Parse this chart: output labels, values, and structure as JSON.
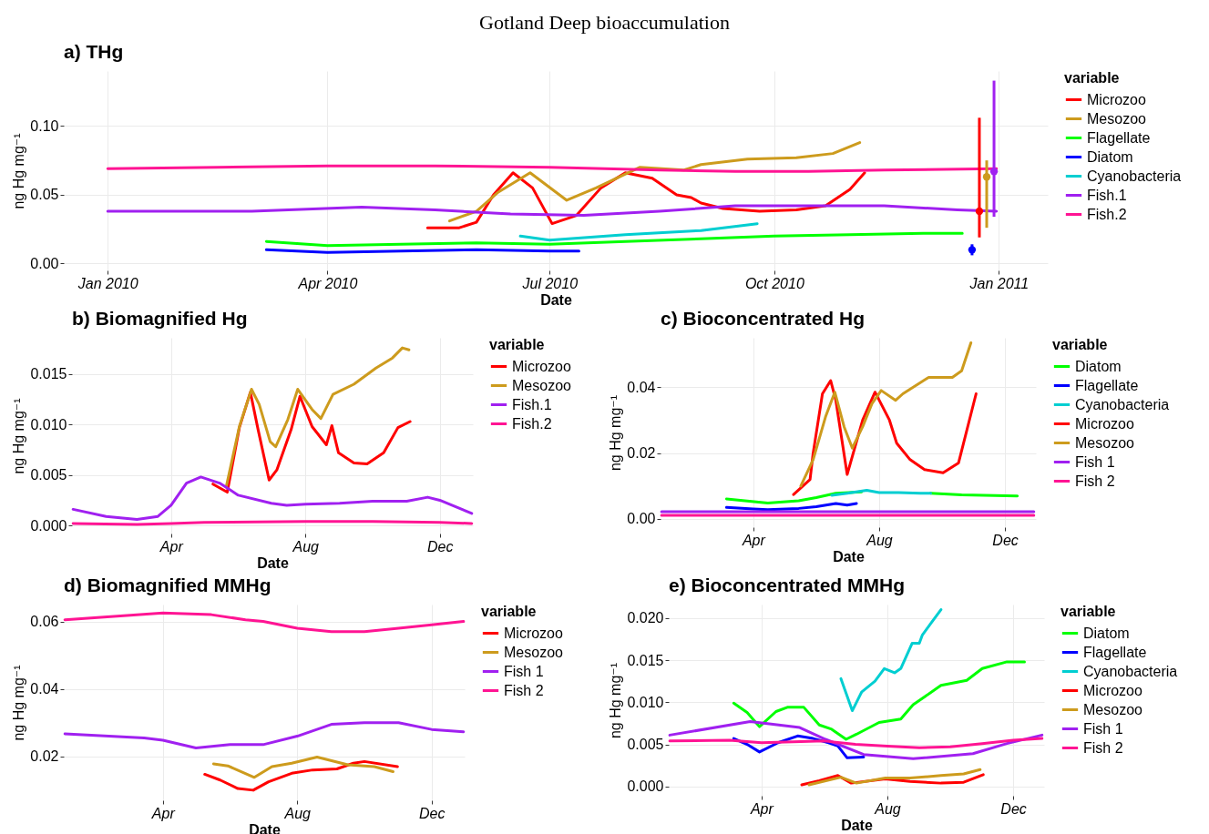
{
  "chart_data": [
    {
      "type": "line",
      "title": "a) THg",
      "xlabel": "Date",
      "ylabel": "ng Hg  mg⁻¹",
      "legend_title": "variable",
      "legend": "right",
      "grid": true,
      "annotations": [
        "Gotland Deep bioaccumulation"
      ],
      "xlim": [
        "2009-12-14",
        "2011-01-21"
      ],
      "xticks": [
        {
          "value": "2010-01-01",
          "label": "Jan 2010"
        },
        {
          "value": "2010-04-01",
          "label": "Apr 2010"
        },
        {
          "value": "2010-07-01",
          "label": "Jul 2010"
        },
        {
          "value": "2010-10-01",
          "label": "Oct 2010"
        },
        {
          "value": "2011-01-01",
          "label": "Jan 2011"
        }
      ],
      "ylim": [
        -0.005,
        0.14
      ],
      "yticks": [
        {
          "value": 0,
          "label": "0.00"
        },
        {
          "value": 0.05,
          "label": "0.05"
        },
        {
          "value": 0.1,
          "label": "0.10"
        }
      ],
      "series": [
        {
          "name": "Microzoo",
          "color": "#ff0000",
          "x": [
            "2010-05-12",
            "2010-05-25",
            "2010-06-01",
            "2010-06-08",
            "2010-06-16",
            "2010-06-24",
            "2010-07-02",
            "2010-07-12",
            "2010-07-22",
            "2010-08-01",
            "2010-08-12",
            "2010-08-22",
            "2010-08-28",
            "2010-09-01",
            "2010-09-10",
            "2010-09-25",
            "2010-10-10",
            "2010-10-22",
            "2010-11-01",
            "2010-11-07"
          ],
          "values": [
            0.026,
            0.026,
            0.03,
            0.05,
            0.066,
            0.055,
            0.029,
            0.035,
            0.055,
            0.066,
            0.062,
            0.05,
            0.048,
            0.044,
            0.04,
            0.038,
            0.039,
            0.042,
            0.054,
            0.066
          ]
        },
        {
          "name": "Mesozoo",
          "color": "#cd9b1d",
          "x": [
            "2010-05-21",
            "2010-06-01",
            "2010-06-10",
            "2010-06-23",
            "2010-07-08",
            "2010-07-20",
            "2010-08-07",
            "2010-08-25",
            "2010-09-01",
            "2010-09-20",
            "2010-10-10",
            "2010-10-25",
            "2010-11-05"
          ],
          "values": [
            0.031,
            0.038,
            0.052,
            0.066,
            0.046,
            0.055,
            0.07,
            0.068,
            0.072,
            0.076,
            0.077,
            0.08,
            0.088
          ]
        },
        {
          "name": "Flagellate",
          "color": "#00ff00",
          "x": [
            "2010-03-07",
            "2010-04-01",
            "2010-05-01",
            "2010-06-01",
            "2010-07-01",
            "2010-08-01",
            "2010-09-01",
            "2010-10-01",
            "2010-11-01",
            "2010-12-01",
            "2010-12-17"
          ],
          "values": [
            0.016,
            0.013,
            0.014,
            0.015,
            0.014,
            0.016,
            0.018,
            0.02,
            0.021,
            0.022,
            0.022
          ]
        },
        {
          "name": "Diatom",
          "color": "#0000ff",
          "x": [
            "2010-03-07",
            "2010-04-01",
            "2010-05-01",
            "2010-06-01",
            "2010-07-01",
            "2010-07-13"
          ],
          "values": [
            0.01,
            0.008,
            0.009,
            0.01,
            0.009,
            0.009
          ]
        },
        {
          "name": "Cyanobacteria",
          "color": "#00ced1",
          "x": [
            "2010-06-19",
            "2010-07-01",
            "2010-08-01",
            "2010-09-01",
            "2010-09-24"
          ],
          "values": [
            0.02,
            0.017,
            0.021,
            0.024,
            0.029
          ]
        },
        {
          "name": "Fish.1",
          "color": "#a020f0",
          "x": [
            "2010-01-01",
            "2010-03-01",
            "2010-04-15",
            "2010-05-15",
            "2010-06-15",
            "2010-07-15",
            "2010-08-15",
            "2010-09-15",
            "2010-10-15",
            "2010-11-15",
            "2010-12-15",
            "2010-12-31"
          ],
          "values": [
            0.038,
            0.038,
            0.041,
            0.039,
            0.036,
            0.035,
            0.038,
            0.042,
            0.042,
            0.042,
            0.039,
            0.038
          ]
        },
        {
          "name": "Fish.2",
          "color": "#ff1493",
          "x": [
            "2010-01-01",
            "2010-02-15",
            "2010-04-01",
            "2010-05-15",
            "2010-07-01",
            "2010-08-15",
            "2010-09-15",
            "2010-10-15",
            "2010-11-15",
            "2010-12-31"
          ],
          "values": [
            0.069,
            0.07,
            0.071,
            0.071,
            0.07,
            0.068,
            0.067,
            0.067,
            0.068,
            0.069
          ]
        },
        {
          "type": "scatter",
          "marker": "circle",
          "color": "#0000ff",
          "x": [
            "2010-12-21"
          ],
          "values": [
            0.01
          ],
          "errors": [
            [
              0.006,
              0.014
            ]
          ]
        },
        {
          "type": "scatter",
          "marker": "circle",
          "color": "#ff0000",
          "x": [
            "2010-12-24"
          ],
          "values": [
            0.038
          ],
          "errors": [
            [
              0.019,
              0.106
            ]
          ]
        },
        {
          "type": "scatter",
          "marker": "circle",
          "color": "#cd9b1d",
          "x": [
            "2010-12-27"
          ],
          "values": [
            0.063
          ],
          "errors": [
            [
              0.026,
              0.075
            ]
          ]
        },
        {
          "type": "scatter",
          "marker": "circle",
          "color": "#a020f0",
          "x": [
            "2010-12-30"
          ],
          "values": [
            0.067
          ],
          "errors": [
            [
              0.034,
              0.133
            ]
          ]
        }
      ]
    },
    {
      "type": "line",
      "title": "b) Biomagnified Hg",
      "xlabel": "Date",
      "ylabel": "ng Hg  mg⁻¹",
      "legend_title": "variable",
      "legend": "right",
      "grid": true,
      "xlim": [
        "--01-01",
        "--12-31"
      ],
      "xticks": [
        {
          "value": "--04-01",
          "label": "Apr"
        },
        {
          "value": "--08-01",
          "label": "Aug"
        },
        {
          "value": "--12-01",
          "label": "Dec"
        }
      ],
      "ylim": [
        -0.0008,
        0.0186
      ],
      "yticks": [
        {
          "value": 0,
          "label": "0.000"
        },
        {
          "value": 0.005,
          "label": "0.005"
        },
        {
          "value": 0.01,
          "label": "0.010"
        },
        {
          "value": 0.015,
          "label": "0.015"
        }
      ],
      "series": [
        {
          "name": "Microzoo",
          "color": "#ff0000",
          "x": [
            "--05-09",
            "--05-22",
            "--06-02",
            "--06-12",
            "--06-19",
            "--06-29",
            "--07-06",
            "--07-19",
            "--07-27",
            "--08-07",
            "--08-20",
            "--08-25",
            "--08-31",
            "--09-14",
            "--09-26",
            "--10-11",
            "--10-24",
            "--11-04"
          ],
          "values": [
            0.0041,
            0.0033,
            0.0097,
            0.0132,
            0.0095,
            0.0045,
            0.0055,
            0.0095,
            0.0128,
            0.0098,
            0.008,
            0.0099,
            0.0072,
            0.0062,
            0.0061,
            0.0072,
            0.0097,
            0.0103
          ]
        },
        {
          "name": "Mesozoo",
          "color": "#cd9b1d",
          "x": [
            "--05-21",
            "--06-02",
            "--06-13",
            "--06-20",
            "--06-30",
            "--07-05",
            "--07-16",
            "--07-25",
            "--08-07",
            "--08-15",
            "--08-26",
            "--09-14",
            "--10-04",
            "--10-19",
            "--10-28",
            "--11-03"
          ],
          "values": [
            0.0038,
            0.0098,
            0.0135,
            0.012,
            0.0083,
            0.0078,
            0.0105,
            0.0135,
            0.0115,
            0.0106,
            0.013,
            0.014,
            0.0156,
            0.0166,
            0.0176,
            0.0174
          ]
        },
        {
          "name": "Fish.1",
          "color": "#a020f0",
          "x": [
            "--01-02",
            "--02-01",
            "--03-01",
            "--03-20",
            "--04-01",
            "--04-15",
            "--04-28",
            "--05-15",
            "--06-01",
            "--07-01",
            "--07-15",
            "--08-01",
            "--09-01",
            "--10-01",
            "--11-01",
            "--11-20",
            "--12-01",
            "--12-30"
          ],
          "values": [
            0.0016,
            0.0009,
            0.0006,
            0.0009,
            0.002,
            0.0042,
            0.0048,
            0.0042,
            0.003,
            0.0022,
            0.002,
            0.0021,
            0.0022,
            0.0024,
            0.0024,
            0.0028,
            0.0025,
            0.0012
          ]
        },
        {
          "name": "Fish.2",
          "color": "#ff1493",
          "x": [
            "--01-02",
            "--03-01",
            "--04-01",
            "--05-01",
            "--08-01",
            "--10-01",
            "--12-01",
            "--12-30"
          ],
          "values": [
            0.0002,
            0.0001,
            0.0002,
            0.0003,
            0.0004,
            0.0004,
            0.0003,
            0.0002
          ]
        }
      ]
    },
    {
      "type": "line",
      "title": "c) Bioconcentrated Hg",
      "xlabel": "Date",
      "ylabel": "ng Hg mg⁻¹",
      "legend_title": "variable",
      "legend": "right",
      "grid": true,
      "xlim": [
        "--01-01",
        "--12-31"
      ],
      "xticks": [
        {
          "value": "--04-01",
          "label": "Apr"
        },
        {
          "value": "--08-01",
          "label": "Aug"
        },
        {
          "value": "--12-01",
          "label": "Dec"
        }
      ],
      "ylim": [
        -0.0025,
        0.055
      ],
      "yticks": [
        {
          "value": 0,
          "label": "0.00"
        },
        {
          "value": 0.02,
          "label": "0.02"
        },
        {
          "value": 0.04,
          "label": "0.04"
        }
      ],
      "series": [
        {
          "name": "Diatom",
          "color": "#00ff00",
          "x": [
            "--03-06",
            "--04-15",
            "--05-15",
            "--06-01",
            "--06-20",
            "--07-15",
            "--08-15",
            "--09-20",
            "--10-20",
            "--12-13"
          ],
          "values": [
            0.0061,
            0.0048,
            0.0055,
            0.0065,
            0.0078,
            0.0082,
            null,
            0.0078,
            0.0073,
            0.007
          ]
        },
        {
          "name": "Flagellate",
          "color": "#0000ff",
          "x": [
            "--03-06",
            "--04-01",
            "--04-15",
            "--05-15",
            "--06-01",
            "--06-20",
            "--07-01",
            "--07-10"
          ],
          "values": [
            0.0035,
            0.003,
            0.0028,
            0.0032,
            0.0037,
            0.0047,
            0.0042,
            0.0047
          ]
        },
        {
          "name": "Cyanobacteria",
          "color": "#00ced1",
          "x": [
            "--06-16",
            "--07-01",
            "--07-20",
            "--08-01",
            "--08-20",
            "--09-10",
            "--09-20"
          ],
          "values": [
            0.0072,
            0.0078,
            0.0087,
            0.008,
            0.008,
            0.0078,
            0.0078
          ]
        },
        {
          "name": "Microzoo",
          "color": "#ff0000",
          "x": [
            "--05-10",
            "--05-26",
            "--05-29",
            "--06-07",
            "--06-15",
            "--06-20",
            "--07-01",
            "--07-16",
            "--07-28",
            "--08-11",
            "--08-18",
            "--08-31",
            "--09-14",
            "--10-02",
            "--10-17",
            "--11-03"
          ],
          "values": [
            0.0074,
            0.012,
            0.02,
            0.038,
            0.042,
            0.036,
            0.0135,
            0.03,
            0.0385,
            0.03,
            0.023,
            0.018,
            0.015,
            0.014,
            0.017,
            0.038
          ]
        },
        {
          "name": "Mesozoo",
          "color": "#cd9b1d",
          "x": [
            "--05-17",
            "--05-29",
            "--06-10",
            "--06-19",
            "--06-28",
            "--07-06",
            "--07-16",
            "--07-25",
            "--08-03",
            "--08-17",
            "--08-24",
            "--09-18",
            "--10-11",
            "--10-20",
            "--10-29"
          ],
          "values": [
            0.01,
            0.018,
            0.031,
            0.0385,
            0.028,
            0.0215,
            0.028,
            0.035,
            0.039,
            0.036,
            0.038,
            0.043,
            0.043,
            0.045,
            0.0535
          ]
        },
        {
          "name": "Fish 1",
          "color": "#a020f0",
          "x": [
            "--01-02",
            "--03-01",
            "--05-01",
            "--07-01",
            "--09-01",
            "--11-01",
            "--12-29"
          ],
          "values": [
            0.0022,
            0.0022,
            0.0022,
            0.0022,
            0.0022,
            0.0022,
            0.0022
          ]
        },
        {
          "name": "Fish 2",
          "color": "#ff1493",
          "x": [
            "--01-02",
            "--03-01",
            "--05-01",
            "--07-01",
            "--09-01",
            "--11-01",
            "--12-29"
          ],
          "values": [
            0.0011,
            0.0011,
            0.0011,
            0.0011,
            0.0011,
            0.0011,
            0.0011
          ]
        }
      ]
    },
    {
      "type": "line",
      "title": "d) Biomagnified MMHg",
      "xlabel": "Date",
      "ylabel": "ng Hg mg⁻¹",
      "legend_title": "variable",
      "legend": "right",
      "grid": true,
      "xlim": [
        "--01-01",
        "--12-31"
      ],
      "xticks": [
        {
          "value": "--04-01",
          "label": "Apr"
        },
        {
          "value": "--08-01",
          "label": "Aug"
        },
        {
          "value": "--12-01",
          "label": "Dec"
        }
      ],
      "ylim": [
        0.007,
        0.065
      ],
      "yticks": [
        {
          "value": 0.02,
          "label": "0.02"
        },
        {
          "value": 0.04,
          "label": "0.04"
        },
        {
          "value": 0.06,
          "label": "0.06"
        }
      ],
      "series": [
        {
          "name": "Microzoo",
          "color": "#ff0000",
          "x": [
            "--05-09",
            "--05-23",
            "--06-08",
            "--06-22",
            "--07-06",
            "--07-27",
            "--08-15",
            "--09-06",
            "--09-21",
            "--10-01",
            "--10-31"
          ],
          "values": [
            0.0147,
            0.013,
            0.0105,
            0.01,
            0.0125,
            0.015,
            0.016,
            0.0163,
            0.018,
            0.0185,
            0.017
          ]
        },
        {
          "name": "Mesozoo",
          "color": "#cd9b1d",
          "x": [
            "--05-17",
            "--05-30",
            "--06-23",
            "--07-09",
            "--07-27",
            "--08-19",
            "--09-16",
            "--10-10",
            "--10-27"
          ],
          "values": [
            0.0178,
            0.0172,
            0.0138,
            0.017,
            0.018,
            0.0198,
            0.0175,
            0.017,
            0.0155
          ]
        },
        {
          "name": "Fish 1",
          "color": "#a020f0",
          "x": [
            "--01-02",
            "--03-15",
            "--04-01",
            "--05-01",
            "--06-01",
            "--07-01",
            "--08-01",
            "--09-01",
            "--10-01",
            "--11-01",
            "--12-01",
            "--12-30"
          ],
          "values": [
            0.0267,
            0.0255,
            0.0248,
            0.0225,
            0.0235,
            0.0235,
            0.026,
            0.0295,
            0.03,
            0.03,
            0.028,
            0.0273
          ]
        },
        {
          "name": "Fish 2",
          "color": "#ff1493",
          "x": [
            "--01-02",
            "--04-01",
            "--05-15",
            "--06-15",
            "--07-01",
            "--08-01",
            "--09-01",
            "--10-01",
            "--11-01",
            "--12-01",
            "--12-30"
          ],
          "values": [
            0.0605,
            0.0625,
            0.062,
            0.0605,
            0.06,
            0.058,
            0.057,
            0.057,
            0.058,
            0.059,
            0.06
          ]
        }
      ]
    },
    {
      "type": "line",
      "title": "e) Bioconcentrated MMHg",
      "xlabel": "Date",
      "ylabel": "ng Hg mg⁻¹",
      "legend_title": "variable",
      "legend": "right",
      "grid": true,
      "xlim": [
        "--01-01",
        "--12-31"
      ],
      "xticks": [
        {
          "value": "--04-01",
          "label": "Apr"
        },
        {
          "value": "--08-01",
          "label": "Aug"
        },
        {
          "value": "--12-01",
          "label": "Dec"
        }
      ],
      "ylim": [
        -0.0011,
        0.0216
      ],
      "yticks": [
        {
          "value": 0,
          "label": "0.000"
        },
        {
          "value": 0.005,
          "label": "0.005"
        },
        {
          "value": 0.01,
          "label": "0.010"
        },
        {
          "value": 0.015,
          "label": "0.015"
        },
        {
          "value": 0.02,
          "label": "0.020"
        }
      ],
      "series": [
        {
          "name": "Diatom",
          "color": "#00ff00",
          "x": [
            "--03-05",
            "--03-18",
            "--03-30",
            "--04-15",
            "--04-26",
            "--05-12",
            "--05-27",
            "--06-08",
            "--06-22",
            "--07-02",
            "--07-24",
            "--08-14",
            "--08-26",
            "--09-22",
            "--10-17",
            "--11-01",
            "--11-25",
            "--12-12"
          ],
          "values": [
            0.0099,
            0.0088,
            0.0071,
            0.0089,
            0.0094,
            0.0094,
            0.0073,
            0.0068,
            0.0056,
            0.0062,
            0.0076,
            0.008,
            0.0097,
            0.012,
            0.0126,
            0.014,
            0.0148,
            0.0148
          ]
        },
        {
          "name": "Flagellate",
          "color": "#0000ff",
          "x": [
            "--03-05",
            "--03-18",
            "--03-30",
            "--04-17",
            "--05-06",
            "--05-21",
            "--06-05",
            "--06-14",
            "--06-23",
            "--07-09"
          ],
          "values": [
            0.0057,
            0.005,
            0.0041,
            0.0052,
            0.006,
            0.0057,
            0.0052,
            0.0048,
            0.0034,
            0.0035
          ]
        },
        {
          "name": "Cyanobacteria",
          "color": "#00ced1",
          "x": [
            "--06-17",
            "--06-28",
            "--07-07",
            "--07-20",
            "--07-29",
            "--08-08",
            "--08-14",
            "--08-25",
            "--09-01",
            "--09-04",
            "--09-13",
            "--09-22"
          ],
          "values": [
            0.0128,
            0.009,
            0.0112,
            0.0125,
            0.014,
            0.0135,
            0.014,
            0.017,
            0.017,
            0.018,
            0.0195,
            0.021
          ]
        },
        {
          "name": "Microzoo",
          "color": "#ff0000",
          "x": [
            "--05-10",
            "--05-27",
            "--06-14",
            "--06-27",
            "--07-30",
            "--08-23",
            "--09-22",
            "--10-14",
            "--11-02"
          ],
          "values": [
            0.0002,
            0.0007,
            0.0013,
            0.0004,
            0.0009,
            0.0006,
            0.0004,
            0.0005,
            0.0014
          ]
        },
        {
          "name": "Mesozoo",
          "color": "#cd9b1d",
          "x": [
            "--05-17",
            "--06-17",
            "--07-02",
            "--07-30",
            "--08-23",
            "--09-22",
            "--10-14",
            "--10-30"
          ],
          "values": [
            0.0002,
            0.0011,
            0.0004,
            0.001,
            0.001,
            0.0013,
            0.0015,
            0.002
          ]
        },
        {
          "name": "Fish 1",
          "color": "#a020f0",
          "x": [
            "--01-02",
            "--03-21",
            "--05-08",
            "--06-02",
            "--07-09",
            "--08-26",
            "--10-23",
            "--11-25",
            "--12-29"
          ],
          "values": [
            0.0061,
            0.0077,
            0.007,
            0.0056,
            0.0038,
            0.0033,
            0.0039,
            0.0051,
            0.0061
          ]
        },
        {
          "name": "Fish 2",
          "color": "#ff1493",
          "x": [
            "--01-02",
            "--03-01",
            "--04-01",
            "--06-01",
            "--07-01",
            "--08-01",
            "--09-01",
            "--10-01",
            "--11-01",
            "--12-01",
            "--12-29"
          ],
          "values": [
            0.0054,
            0.0055,
            0.0052,
            0.0054,
            0.005,
            0.0048,
            0.0046,
            0.0047,
            0.0051,
            0.0055,
            0.0057
          ]
        }
      ]
    }
  ]
}
